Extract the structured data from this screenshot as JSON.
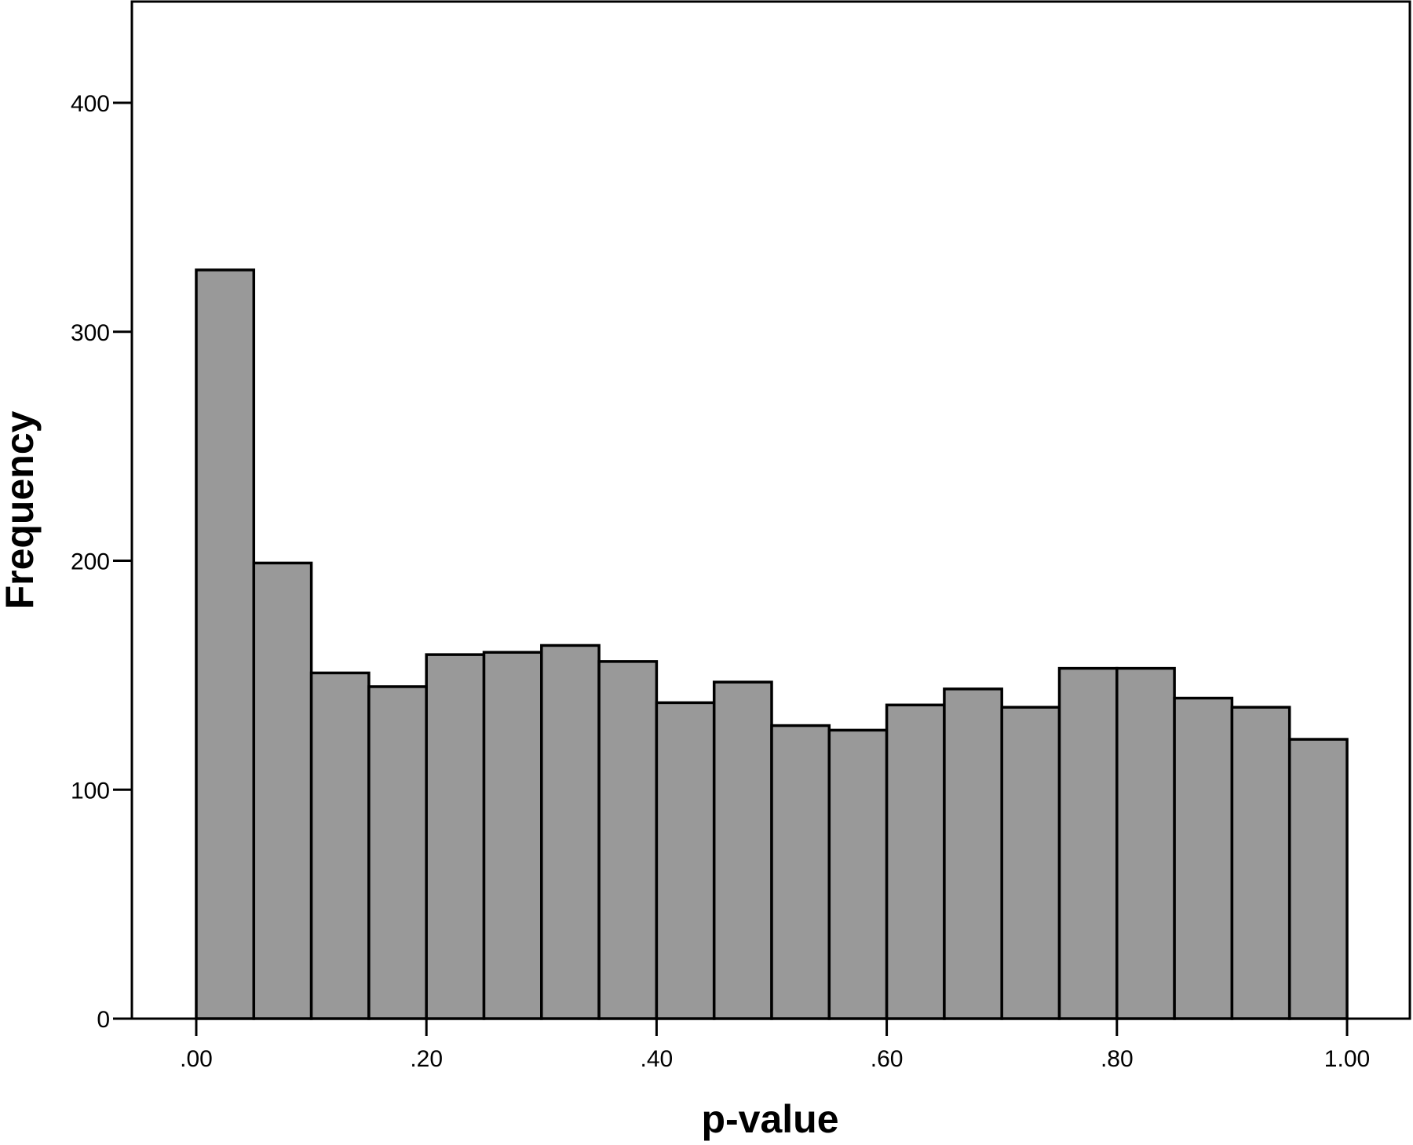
{
  "chart_data": {
    "type": "bar",
    "subtype": "histogram",
    "xlabel": "p-value",
    "ylabel": "Frequency",
    "xlim": [
      -0.14,
      1.055
    ],
    "ylim": [
      0,
      440
    ],
    "x_ticks": [
      0.0,
      0.2,
      0.4,
      0.6,
      0.8,
      1.0
    ],
    "x_tick_labels": [
      ".00",
      ".20",
      ".40",
      ".60",
      ".80",
      "1.00"
    ],
    "y_ticks": [
      0,
      100,
      200,
      300,
      400
    ],
    "y_tick_labels": [
      "0",
      "100",
      "200",
      "300",
      "400"
    ],
    "bin_edges": [
      0.0,
      0.05,
      0.1,
      0.15,
      0.2,
      0.25,
      0.3,
      0.35,
      0.4,
      0.45,
      0.5,
      0.55,
      0.6,
      0.65,
      0.7,
      0.75,
      0.8,
      0.85,
      0.9,
      0.95,
      1.0
    ],
    "values": [
      327,
      199,
      151,
      145,
      159,
      160,
      163,
      156,
      138,
      147,
      128,
      126,
      137,
      144,
      136,
      153,
      153,
      140,
      136,
      122
    ],
    "bar_color": "#999999",
    "edge_color": "#000000",
    "grid": false,
    "legend": "none"
  }
}
